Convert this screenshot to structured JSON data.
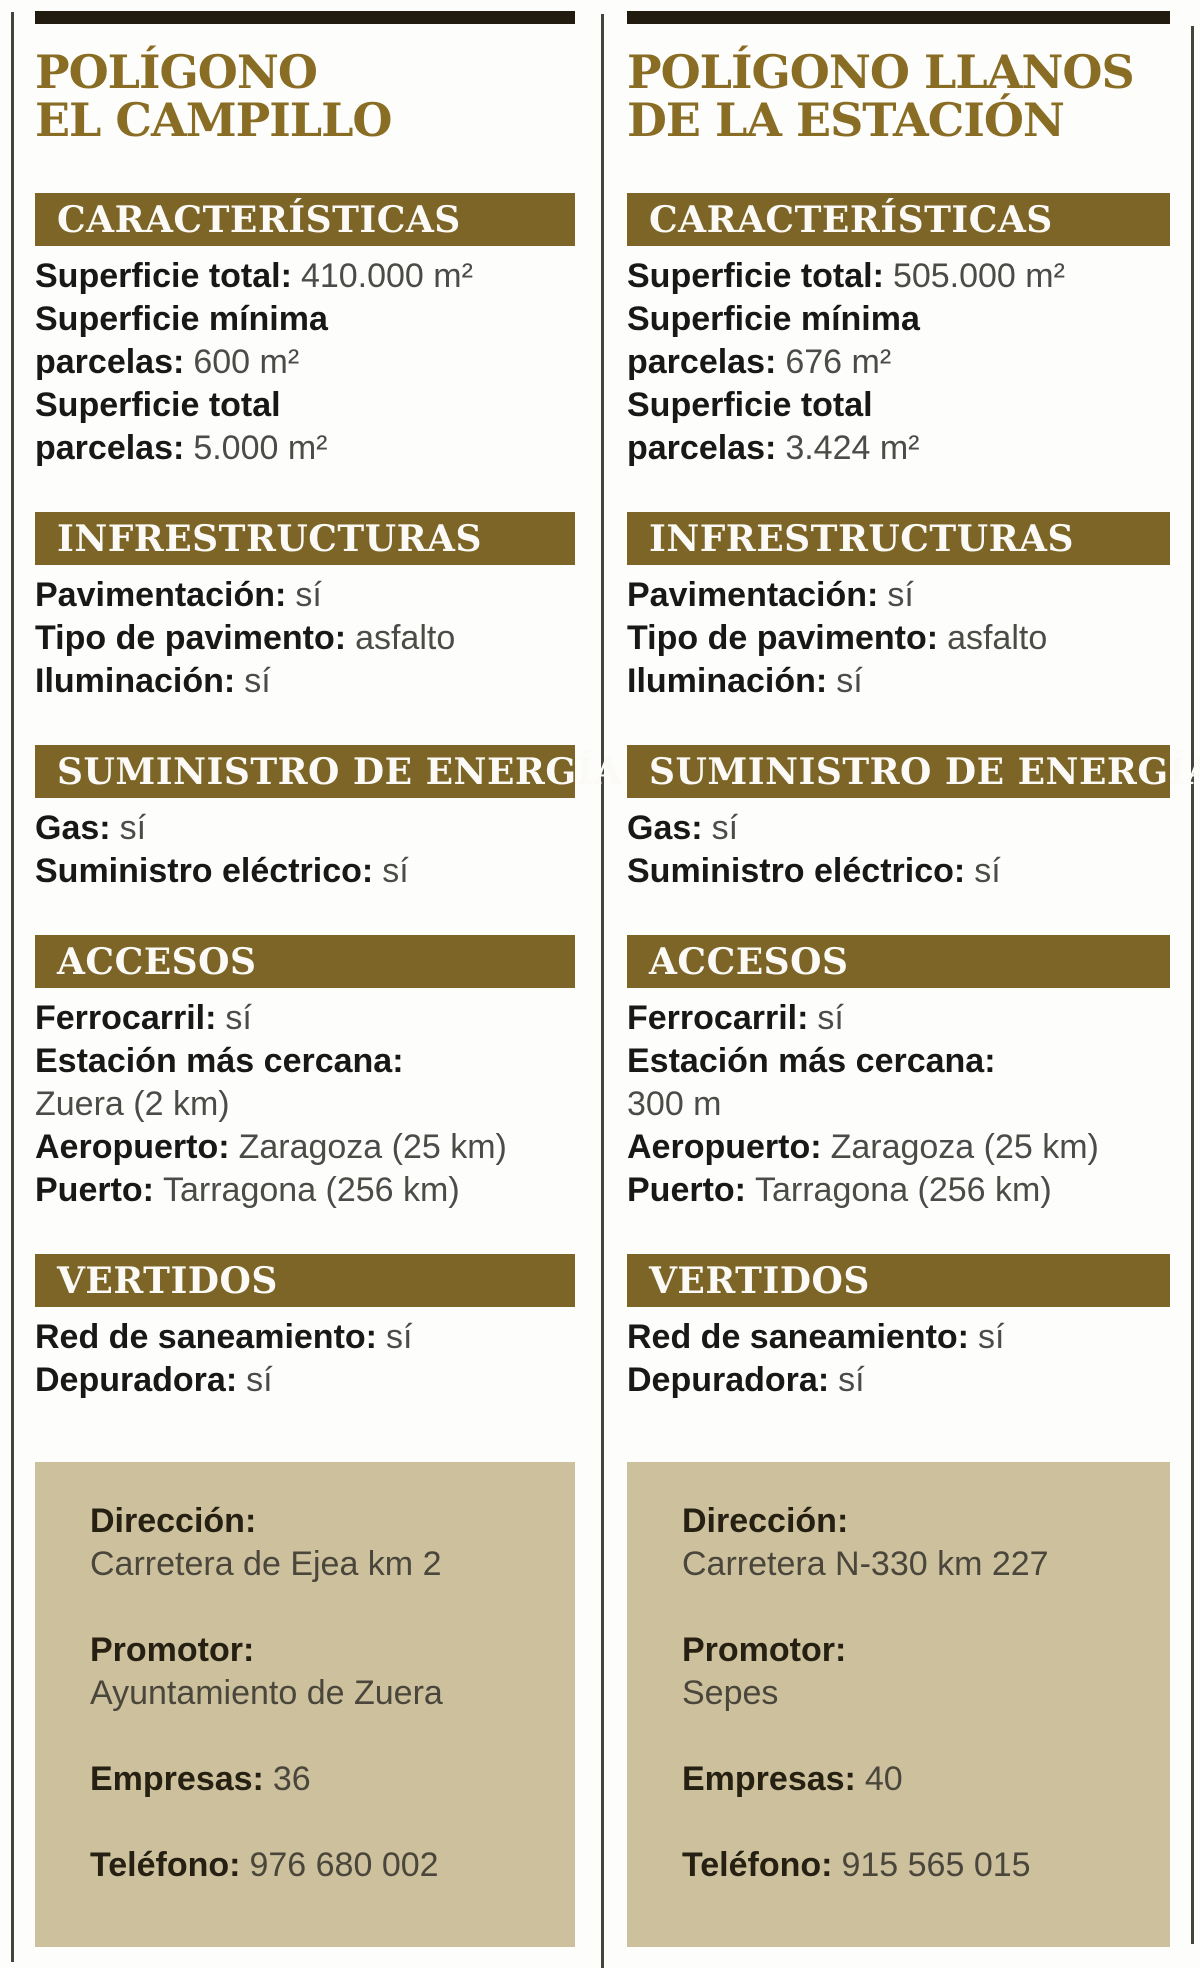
{
  "colors": {
    "title_gold": "#8a6d25",
    "section_bar_brown": "#7c6527",
    "section_bar_text": "#fbfaf6",
    "top_bar_black": "#211b10",
    "infobox_beige": "#cdc19d",
    "label_black": "#181816",
    "value_gray": "#4b4b48",
    "rule_gray": "#45433c"
  },
  "columns": [
    {
      "title": {
        "line1": "POLÍGONO",
        "line2": "EL CAMPILLO"
      },
      "sections": [
        {
          "header": "CARACTERÍSTICAS",
          "lines": [
            {
              "label": "Superficie total:",
              "value": "410.000 m²"
            },
            {
              "label": "Superficie mínima",
              "value": ""
            },
            {
              "label": "parcelas:",
              "value": "600 m²"
            },
            {
              "label": "Superficie total",
              "value": ""
            },
            {
              "label": "parcelas:",
              "value": "5.000 m²"
            }
          ]
        },
        {
          "header": "INFRESTRUCTURAS",
          "lines": [
            {
              "label": "Pavimentación:",
              "value": "sí"
            },
            {
              "label": "Tipo de pavimento:",
              "value": "asfalto"
            },
            {
              "label": "Iluminación:",
              "value": "sí"
            }
          ]
        },
        {
          "header": "SUMINISTRO DE ENERGÍA",
          "lines": [
            {
              "label": "Gas:",
              "value": "sí"
            },
            {
              "label": "Suministro eléctrico:",
              "value": "sí"
            }
          ]
        },
        {
          "header": "ACCESOS",
          "lines": [
            {
              "label": "Ferrocarril:",
              "value": "sí"
            },
            {
              "label": "Estación más cercana:",
              "value": ""
            },
            {
              "label": "",
              "value": "Zuera (2 km)"
            },
            {
              "label": "Aeropuerto:",
              "value": "Zaragoza (25 km)"
            },
            {
              "label": "Puerto:",
              "value": "Tarragona (256 km)"
            }
          ]
        },
        {
          "header": "VERTIDOS",
          "lines": [
            {
              "label": "Red de saneamiento:",
              "value": "sí"
            },
            {
              "label": "Depuradora:",
              "value": "sí"
            }
          ]
        }
      ],
      "infobox": {
        "rows": [
          {
            "label": "Dirección:",
            "value": "Carretera de Ejea km 2"
          },
          {
            "label": "Promotor:",
            "value": "Ayuntamiento de Zuera"
          },
          {
            "label": "Empresas:",
            "value": "36"
          },
          {
            "label": "Teléfono:",
            "value": "976 680 002"
          }
        ]
      }
    },
    {
      "title": {
        "line1": "POLÍGONO LLANOS",
        "line2": "DE LA ESTACIÓN"
      },
      "sections": [
        {
          "header": "CARACTERÍSTICAS",
          "lines": [
            {
              "label": "Superficie total:",
              "value": "505.000 m²"
            },
            {
              "label": "Superficie mínima",
              "value": ""
            },
            {
              "label": "parcelas:",
              "value": "676 m²"
            },
            {
              "label": "Superficie total",
              "value": ""
            },
            {
              "label": "parcelas:",
              "value": "3.424 m²"
            }
          ]
        },
        {
          "header": "INFRESTRUCTURAS",
          "lines": [
            {
              "label": "Pavimentación:",
              "value": "sí"
            },
            {
              "label": "Tipo de pavimento:",
              "value": "asfalto"
            },
            {
              "label": "Iluminación:",
              "value": "sí"
            }
          ]
        },
        {
          "header": "SUMINISTRO DE ENERGÍA",
          "lines": [
            {
              "label": "Gas:",
              "value": "sí"
            },
            {
              "label": "Suministro eléctrico:",
              "value": "sí"
            }
          ]
        },
        {
          "header": "ACCESOS",
          "lines": [
            {
              "label": "Ferrocarril:",
              "value": "sí"
            },
            {
              "label": "Estación más cercana:",
              "value": ""
            },
            {
              "label": "",
              "value": "300 m"
            },
            {
              "label": "Aeropuerto:",
              "value": "Zaragoza (25 km)"
            },
            {
              "label": "Puerto:",
              "value": "Tarragona (256 km)"
            }
          ]
        },
        {
          "header": "VERTIDOS",
          "lines": [
            {
              "label": "Red de saneamiento:",
              "value": "sí"
            },
            {
              "label": "Depuradora:",
              "value": "sí"
            }
          ]
        }
      ],
      "infobox": {
        "rows": [
          {
            "label": "Dirección:",
            "value": "Carretera N-330 km 227"
          },
          {
            "label": "Promotor:",
            "value": "Sepes"
          },
          {
            "label": "Empresas:",
            "value": "40"
          },
          {
            "label": "Teléfono:",
            "value": "915 565 015"
          }
        ]
      }
    }
  ]
}
